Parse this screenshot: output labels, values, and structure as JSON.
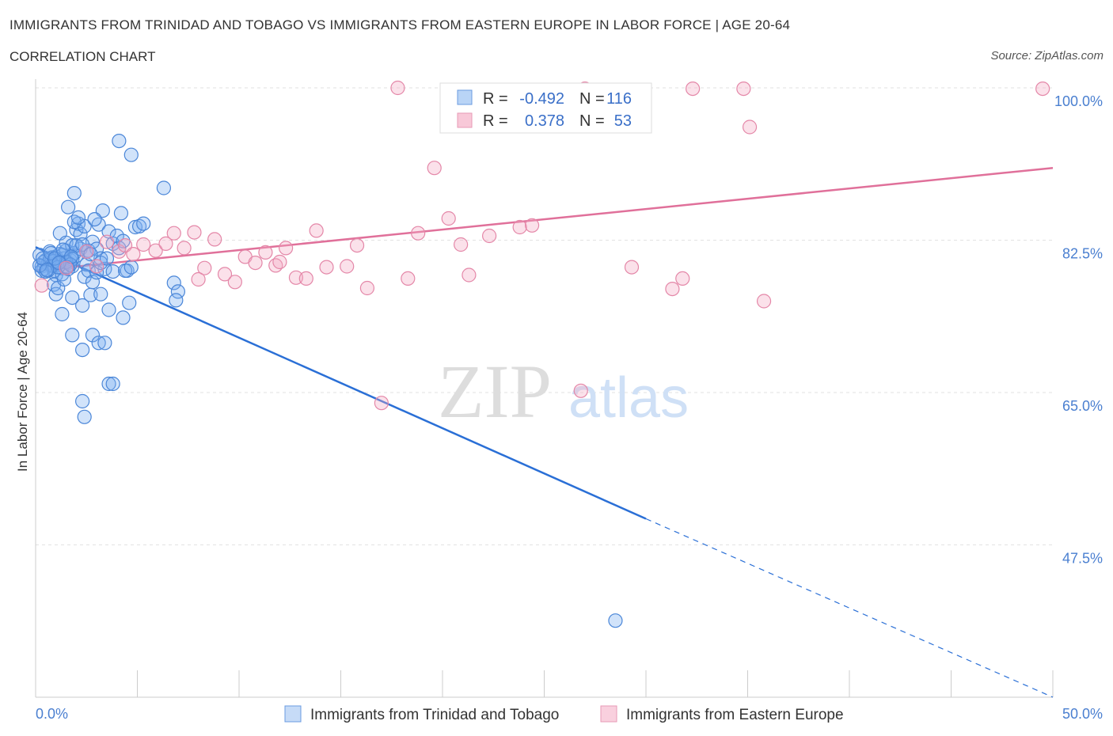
{
  "title": "IMMIGRANTS FROM TRINIDAD AND TOBAGO VS IMMIGRANTS FROM EASTERN EUROPE IN LABOR FORCE | AGE 20-64",
  "subtitle": "CORRELATION CHART",
  "source": "Source: ZipAtlas.com",
  "watermark": {
    "zip": "ZIP",
    "atlas": "atlas"
  },
  "chart_data": {
    "type": "scatter",
    "xlabel": "",
    "ylabel": "In Labor Force | Age 20-64",
    "xlim": [
      0,
      50
    ],
    "ylim": [
      30,
      101
    ],
    "x_tick_labels": [
      {
        "value": 0,
        "label": "0.0%"
      },
      {
        "value": 50,
        "label": "50.0%"
      }
    ],
    "y_tick_labels": [
      {
        "value": 100,
        "label": "100.0%"
      },
      {
        "value": 82.5,
        "label": "82.5%"
      },
      {
        "value": 65,
        "label": "65.0%"
      },
      {
        "value": 47.5,
        "label": "47.5%"
      }
    ],
    "legend": {
      "placement": "top-center",
      "rows": [
        {
          "r_label": "R =",
          "r": "-0.492",
          "n_label": "N =",
          "n": "116"
        },
        {
          "r_label": "R =",
          "r": "0.378",
          "n_label": "N =",
          "n": "53"
        }
      ]
    },
    "series": [
      {
        "name": "Immigrants from Trinidad and Tobago",
        "color": "#7aaef0",
        "stroke": "#4a86d8",
        "trend": {
          "x0": 0,
          "y0": 81.7,
          "x1": 30,
          "y1": 50.5,
          "x_dash_end": 50,
          "y_dash_end": 30
        },
        "trend_color": "#2a6fd6",
        "points": [
          [
            0.2,
            80.8
          ],
          [
            0.3,
            79.5
          ],
          [
            0.4,
            79.2
          ],
          [
            0.5,
            80.2
          ],
          [
            0.6,
            79.8
          ],
          [
            0.7,
            81.2
          ],
          [
            0.8,
            80.5
          ],
          [
            0.9,
            79.0
          ],
          [
            1.0,
            78.5
          ],
          [
            1.1,
            80.0
          ],
          [
            1.2,
            80.9
          ],
          [
            1.3,
            79.3
          ],
          [
            0.4,
            80.0
          ],
          [
            0.6,
            79.0
          ],
          [
            0.8,
            79.6
          ],
          [
            1.0,
            80.6
          ],
          [
            1.2,
            79.7
          ],
          [
            1.4,
            80.4
          ],
          [
            1.5,
            81.3
          ],
          [
            1.6,
            79.9
          ],
          [
            1.7,
            80.2
          ],
          [
            1.8,
            79.5
          ],
          [
            1.9,
            81.0
          ],
          [
            2.0,
            80.7
          ],
          [
            0.9,
            77.4
          ],
          [
            1.0,
            76.3
          ],
          [
            1.1,
            77.0
          ],
          [
            1.3,
            78.6
          ],
          [
            1.4,
            78.0
          ],
          [
            1.6,
            79.2
          ],
          [
            1.8,
            80.3
          ],
          [
            2.2,
            81.5
          ],
          [
            1.2,
            83.3
          ],
          [
            1.5,
            82.2
          ],
          [
            1.8,
            81.9
          ],
          [
            2.0,
            83.7
          ],
          [
            2.1,
            84.4
          ],
          [
            2.2,
            83.2
          ],
          [
            2.4,
            84.1
          ],
          [
            1.9,
            84.6
          ],
          [
            1.6,
            86.3
          ],
          [
            2.1,
            85.1
          ],
          [
            1.9,
            87.9
          ],
          [
            2.5,
            79.7
          ],
          [
            2.6,
            81.3
          ],
          [
            2.8,
            82.3
          ],
          [
            3.0,
            81.5
          ],
          [
            3.1,
            84.3
          ],
          [
            3.2,
            80.4
          ],
          [
            3.4,
            79.2
          ],
          [
            3.6,
            83.5
          ],
          [
            3.8,
            82.1
          ],
          [
            4.0,
            83.0
          ],
          [
            4.1,
            81.6
          ],
          [
            4.3,
            82.4
          ],
          [
            4.5,
            79.0
          ],
          [
            2.4,
            78.3
          ],
          [
            2.6,
            79.0
          ],
          [
            2.8,
            77.7
          ],
          [
            3.0,
            78.8
          ],
          [
            3.2,
            79.9
          ],
          [
            3.5,
            80.4
          ],
          [
            1.8,
            75.9
          ],
          [
            2.3,
            75.0
          ],
          [
            2.7,
            76.2
          ],
          [
            3.2,
            76.3
          ],
          [
            3.6,
            74.5
          ],
          [
            4.3,
            73.6
          ],
          [
            4.6,
            75.3
          ],
          [
            1.3,
            74.0
          ],
          [
            1.8,
            71.6
          ],
          [
            2.3,
            69.9
          ],
          [
            2.8,
            71.6
          ],
          [
            3.1,
            70.7
          ],
          [
            3.4,
            70.7
          ],
          [
            3.6,
            66.0
          ],
          [
            3.8,
            66.0
          ],
          [
            2.3,
            64.0
          ],
          [
            2.4,
            62.2
          ],
          [
            3.8,
            78.9
          ],
          [
            4.4,
            79.0
          ],
          [
            4.7,
            79.4
          ],
          [
            4.9,
            84.0
          ],
          [
            5.1,
            84.1
          ],
          [
            5.3,
            84.4
          ],
          [
            4.2,
            85.6
          ],
          [
            3.3,
            85.9
          ],
          [
            6.3,
            88.5
          ],
          [
            4.1,
            93.9
          ],
          [
            4.7,
            92.3
          ],
          [
            6.8,
            77.6
          ],
          [
            7.0,
            76.6
          ],
          [
            6.9,
            75.6
          ],
          [
            0.3,
            79.0
          ],
          [
            0.5,
            78.9
          ],
          [
            0.7,
            80.3
          ],
          [
            0.9,
            80.1
          ],
          [
            1.1,
            79.4
          ],
          [
            1.3,
            80.8
          ],
          [
            1.5,
            80.0
          ],
          [
            1.7,
            79.7
          ],
          [
            2.0,
            81.9
          ],
          [
            2.3,
            82.0
          ],
          [
            2.5,
            81.2
          ],
          [
            2.7,
            80.9
          ],
          [
            0.2,
            79.6
          ],
          [
            0.35,
            80.4
          ],
          [
            0.55,
            79.1
          ],
          [
            0.75,
            81.0
          ],
          [
            0.95,
            80.4
          ],
          [
            1.15,
            79.9
          ],
          [
            1.35,
            81.4
          ],
          [
            1.55,
            79.4
          ],
          [
            1.75,
            80.6
          ],
          [
            28.5,
            38.8
          ],
          [
            2.9,
            84.9
          ]
        ]
      },
      {
        "name": "Immigrants from Eastern Europe",
        "color": "#f4aac4",
        "stroke": "#e487a8",
        "trend": {
          "x0": 0,
          "y0": 79.0,
          "x1": 50,
          "y1": 90.8
        },
        "trend_color": "#e0709a",
        "points": [
          [
            0.3,
            77.3
          ],
          [
            1.5,
            79.3
          ],
          [
            2.5,
            81.2
          ],
          [
            3.0,
            79.5
          ],
          [
            3.5,
            82.3
          ],
          [
            4.1,
            81.2
          ],
          [
            4.4,
            81.9
          ],
          [
            4.8,
            80.9
          ],
          [
            5.3,
            82.0
          ],
          [
            5.9,
            81.3
          ],
          [
            6.4,
            82.1
          ],
          [
            6.8,
            83.3
          ],
          [
            7.3,
            81.6
          ],
          [
            7.8,
            83.4
          ],
          [
            8.3,
            79.3
          ],
          [
            8.8,
            82.6
          ],
          [
            9.3,
            78.6
          ],
          [
            9.8,
            77.7
          ],
          [
            10.3,
            80.6
          ],
          [
            10.8,
            79.9
          ],
          [
            11.3,
            81.1
          ],
          [
            11.8,
            79.6
          ],
          [
            12.3,
            81.6
          ],
          [
            12.8,
            78.2
          ],
          [
            13.3,
            78.1
          ],
          [
            13.8,
            83.6
          ],
          [
            14.3,
            79.4
          ],
          [
            15.3,
            79.5
          ],
          [
            15.8,
            81.9
          ],
          [
            16.3,
            77.0
          ],
          [
            17.8,
            100.0
          ],
          [
            18.3,
            78.1
          ],
          [
            18.8,
            83.3
          ],
          [
            19.6,
            90.8
          ],
          [
            20.3,
            85.0
          ],
          [
            20.9,
            82.0
          ],
          [
            21.3,
            78.5
          ],
          [
            22.3,
            83.0
          ],
          [
            23.8,
            84.0
          ],
          [
            24.4,
            84.2
          ],
          [
            26.8,
            65.2
          ],
          [
            27.0,
            99.9
          ],
          [
            29.3,
            79.4
          ],
          [
            31.3,
            76.9
          ],
          [
            31.8,
            78.1
          ],
          [
            32.3,
            99.9
          ],
          [
            34.8,
            99.9
          ],
          [
            35.1,
            95.5
          ],
          [
            35.8,
            75.5
          ],
          [
            17.0,
            63.8
          ],
          [
            49.5,
            99.9
          ],
          [
            12.0,
            80.0
          ],
          [
            8.0,
            78.0
          ]
        ]
      }
    ]
  },
  "bottom_legend": {
    "items": [
      {
        "label": "Immigrants from Trinidad and Tobago"
      },
      {
        "label": "Immigrants from Eastern Europe"
      }
    ]
  }
}
